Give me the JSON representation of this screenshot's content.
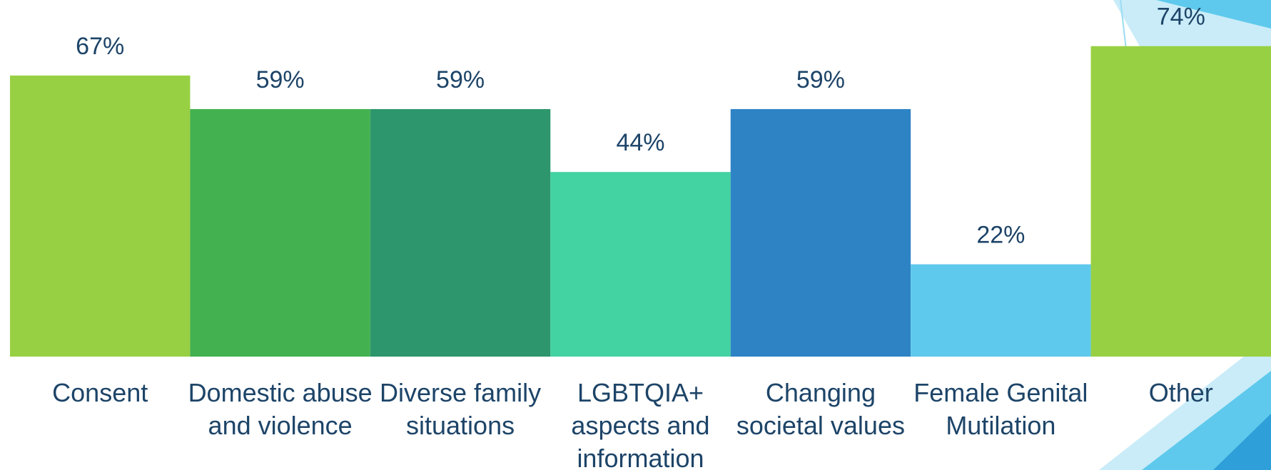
{
  "chart_data": {
    "type": "bar",
    "categories": [
      "Consent",
      "Domestic abuse and violence",
      "Diverse family situations",
      "LGBTQIA+ aspects and information",
      "Changing societal values",
      "Female Genital Mutilation",
      "Other"
    ],
    "values": [
      67,
      59,
      59,
      44,
      59,
      22,
      74
    ],
    "value_labels": [
      "67%",
      "59%",
      "59%",
      "44%",
      "59%",
      "22%",
      "74%"
    ],
    "colors": [
      "#98d043",
      "#43b150",
      "#2e966c",
      "#43d2a2",
      "#2e83c4",
      "#5ec9ec",
      "#98d043"
    ],
    "ylim": [
      0,
      85
    ]
  }
}
